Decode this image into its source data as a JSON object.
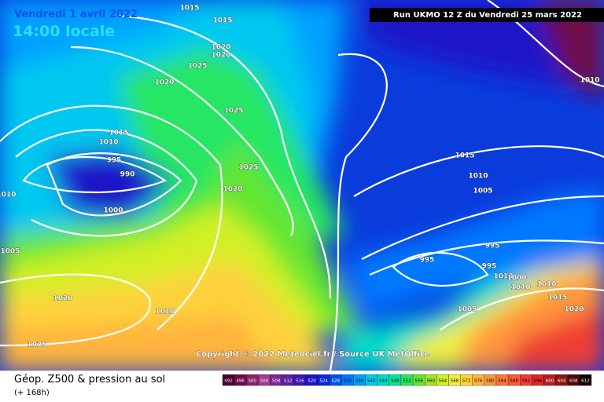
{
  "header": {
    "date": "Vendredi 1 avril 2022",
    "time": "14:00 locale",
    "run": "Run UKMO 12 Z du Vendredi 25 mars 2022"
  },
  "copyright": "Copyright © 2022 Meteociel.fr / Source UK MetOffice",
  "footer": {
    "title": "Géop. Z500 & pression au sol",
    "lead": "(+ 168h)"
  },
  "isobar_labels": [
    "1015",
    "1015",
    "1020",
    "1020",
    "1025",
    "1020",
    "1025",
    "1015",
    "1010",
    "995",
    "990",
    "1025",
    "1020",
    "1000",
    "1010",
    "1005",
    "1020",
    "1010",
    "1025",
    "1015",
    "1010",
    "1005",
    "995",
    "995",
    "995",
    "1010",
    "1000",
    "1010",
    "1010",
    "1015",
    "1005",
    "1020",
    "1010"
  ],
  "legend": {
    "levels": [
      492,
      496,
      500,
      504,
      508,
      512,
      516,
      520,
      524,
      528,
      532,
      536,
      540,
      544,
      548,
      552,
      556,
      560,
      564,
      568,
      572,
      576,
      580,
      584,
      588,
      592,
      596,
      600,
      604,
      608,
      612
    ],
    "colors": [
      "#4a0030",
      "#6e0a4a",
      "#8c1e6e",
      "#a03c8c",
      "#7a2896",
      "#5a1ea0",
      "#3c14b4",
      "#1e14c8",
      "#0a28dc",
      "#0050f0",
      "#0078ff",
      "#00a0ff",
      "#00c8f0",
      "#00dcc8",
      "#00e696",
      "#28e664",
      "#64e632",
      "#a0e628",
      "#d2f028",
      "#f0f03c",
      "#ffd23c",
      "#ffb43c",
      "#ff963c",
      "#ff7832",
      "#ff5a32",
      "#f03c32",
      "#dc2828",
      "#b41e1e",
      "#8c1414",
      "#500a0a",
      "#140000"
    ]
  }
}
